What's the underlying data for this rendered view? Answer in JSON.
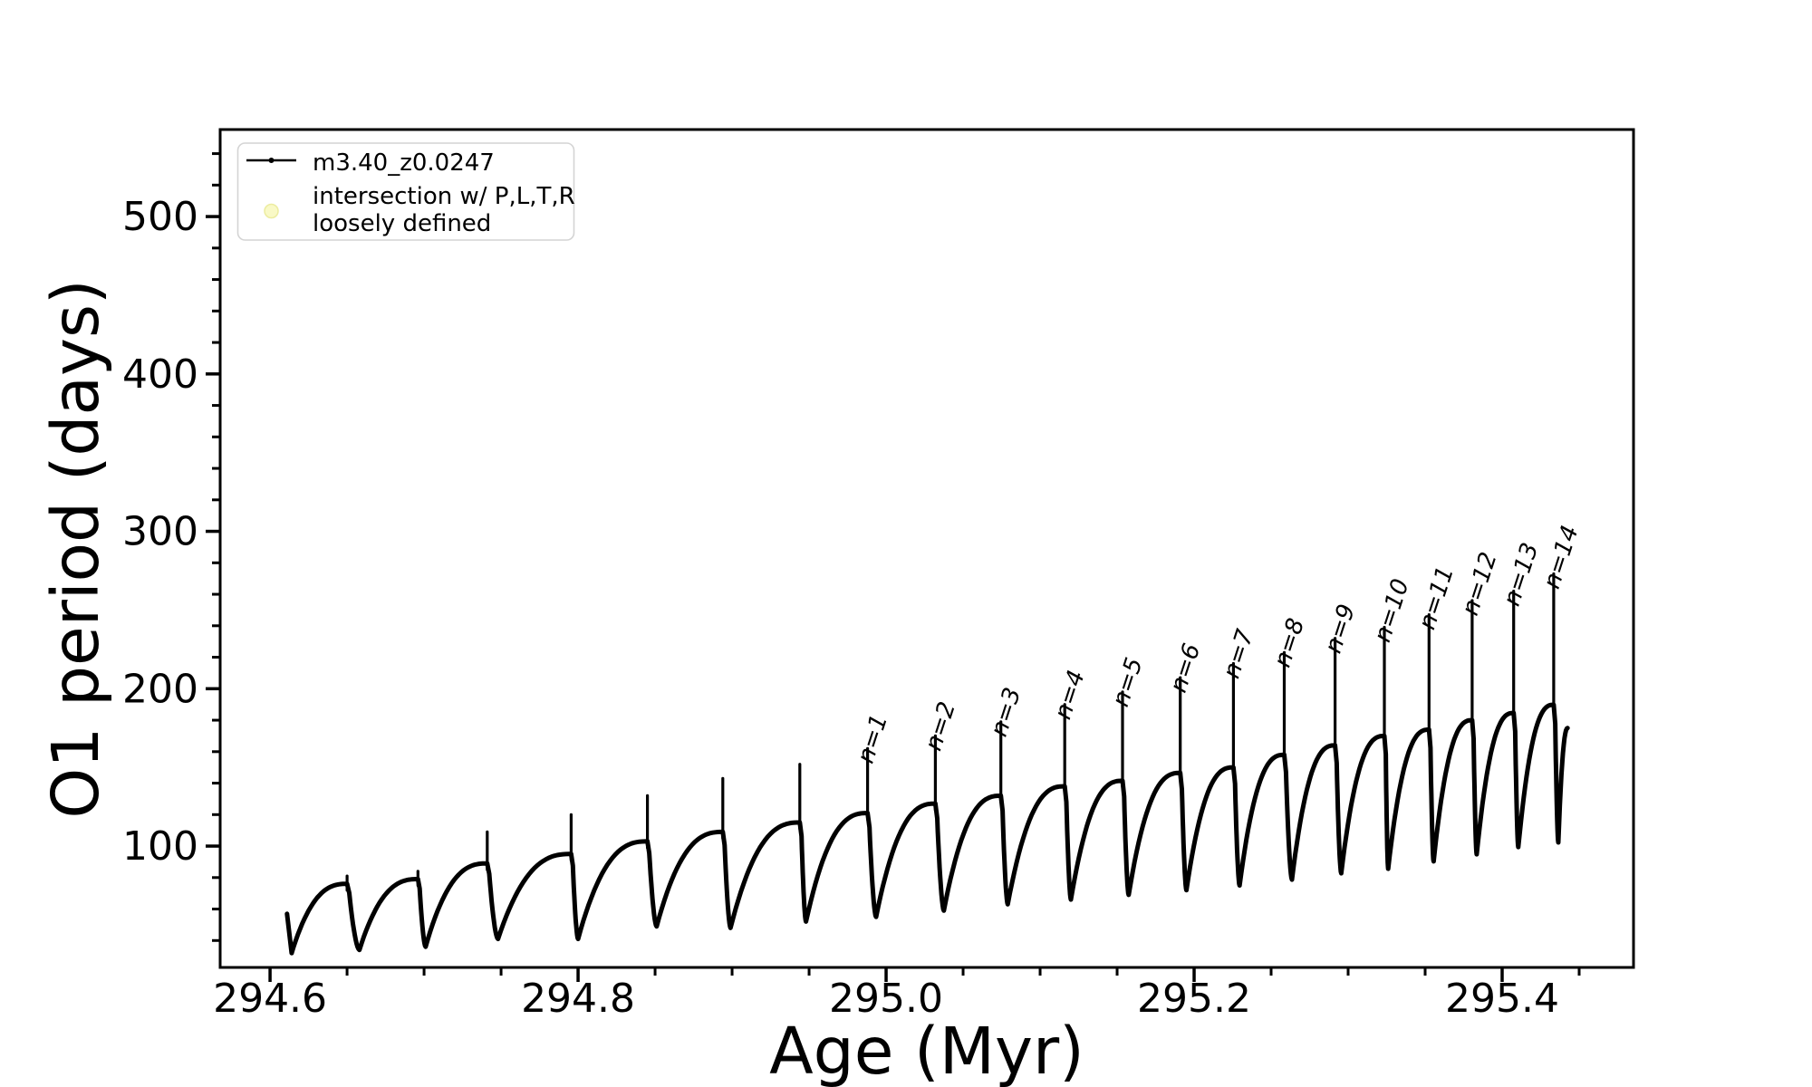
{
  "figure": {
    "background": "#ffffff",
    "frame_color": "#000000"
  },
  "chart_data": {
    "type": "line",
    "title": "",
    "xlabel": "Age (Myr)",
    "ylabel": "O1 period (days)",
    "xlim": [
      294.5676,
      295.4853
    ],
    "ylim": [
      22.9,
      555.3
    ],
    "x_major_ticks": [
      294.6,
      294.8,
      295.0,
      295.2,
      295.4
    ],
    "x_tick_labels": [
      "294.6",
      "294.8",
      "295.0",
      "295.2",
      "295.4"
    ],
    "x_minor_step": 0.05,
    "y_major_ticks": [
      100,
      200,
      300,
      400,
      500
    ],
    "y_tick_labels": [
      "100",
      "200",
      "300",
      "400",
      "500"
    ],
    "y_minor_step": 20,
    "grid": false,
    "legend_position": "upper-left",
    "series": {
      "name": "m3.40_z0.0247",
      "color": "#000000",
      "line_width": 5,
      "spike_width": 3.2
    },
    "start_point": {
      "t": 294.611,
      "v": 57
    },
    "cycles": [
      {
        "t_min": 294.614,
        "v_min": 32,
        "t_spike": 294.65,
        "v_plateau": 76,
        "v_spike": 81,
        "label": null
      },
      {
        "t_min": 294.658,
        "v_min": 34,
        "t_spike": 294.696,
        "v_plateau": 79,
        "v_spike": 84,
        "label": null
      },
      {
        "t_min": 294.701,
        "v_min": 36,
        "t_spike": 294.741,
        "v_plateau": 89,
        "v_spike": 109,
        "label": null
      },
      {
        "t_min": 294.748,
        "v_min": 41,
        "t_spike": 294.7955,
        "v_plateau": 95,
        "v_spike": 120,
        "label": null
      },
      {
        "t_min": 294.8,
        "v_min": 41,
        "t_spike": 294.845,
        "v_plateau": 103,
        "v_spike": 132,
        "label": null
      },
      {
        "t_min": 294.851,
        "v_min": 49,
        "t_spike": 294.894,
        "v_plateau": 109,
        "v_spike": 143,
        "label": null
      },
      {
        "t_min": 294.899,
        "v_min": 48,
        "t_spike": 294.944,
        "v_plateau": 115,
        "v_spike": 152,
        "label": null
      },
      {
        "t_min": 294.948,
        "v_min": 52,
        "t_spike": 294.988,
        "v_plateau": 121,
        "v_spike": 162,
        "label": "n=1"
      },
      {
        "t_min": 294.9935,
        "v_min": 55,
        "t_spike": 295.032,
        "v_plateau": 127,
        "v_spike": 170,
        "label": "n=2"
      },
      {
        "t_min": 295.0375,
        "v_min": 59,
        "t_spike": 295.0745,
        "v_plateau": 132,
        "v_spike": 179,
        "label": "n=3"
      },
      {
        "t_min": 295.079,
        "v_min": 63,
        "t_spike": 295.116,
        "v_plateau": 138,
        "v_spike": 190,
        "label": "n=4"
      },
      {
        "t_min": 295.12,
        "v_min": 66,
        "t_spike": 295.1535,
        "v_plateau": 141.5,
        "v_spike": 198,
        "label": "n=5"
      },
      {
        "t_min": 295.1575,
        "v_min": 69,
        "t_spike": 295.191,
        "v_plateau": 146.5,
        "v_spike": 207,
        "label": "n=6"
      },
      {
        "t_min": 295.195,
        "v_min": 72,
        "t_spike": 295.2255,
        "v_plateau": 150,
        "v_spike": 216,
        "label": "n=7"
      },
      {
        "t_min": 295.2295,
        "v_min": 75,
        "t_spike": 295.2585,
        "v_plateau": 158,
        "v_spike": 223,
        "label": "n=8"
      },
      {
        "t_min": 295.2635,
        "v_min": 78.7,
        "t_spike": 295.2915,
        "v_plateau": 164,
        "v_spike": 232,
        "label": "n=9"
      },
      {
        "t_min": 295.2955,
        "v_min": 82.7,
        "t_spike": 295.3235,
        "v_plateau": 170,
        "v_spike": 239,
        "label": "n=10"
      },
      {
        "t_min": 295.326,
        "v_min": 85.6,
        "t_spike": 295.3525,
        "v_plateau": 174,
        "v_spike": 247,
        "label": "n=11"
      },
      {
        "t_min": 295.3555,
        "v_min": 90.3,
        "t_spike": 295.3805,
        "v_plateau": 180,
        "v_spike": 256,
        "label": "n=12"
      },
      {
        "t_min": 295.3835,
        "v_min": 94.8,
        "t_spike": 295.4075,
        "v_plateau": 184.6,
        "v_spike": 262,
        "label": "n=13"
      },
      {
        "t_min": 295.4105,
        "v_min": 99.4,
        "t_spike": 295.4335,
        "v_plateau": 189.8,
        "v_spike": 273,
        "label": "n=14"
      }
    ],
    "final_segment": {
      "t_min": 295.4365,
      "v_min": 102.3,
      "t_end": 295.4425,
      "v_end": 175
    },
    "spike_labels": [
      "n=1",
      "n=2",
      "n=3",
      "n=4",
      "n=5",
      "n=6",
      "n=7",
      "n=8",
      "n=9",
      "n=10",
      "n=11",
      "n=12",
      "n=13",
      "n=14"
    ]
  },
  "legend": {
    "border_color": "#d4d4d4",
    "background": "#ffffff",
    "entries": [
      {
        "label": "m3.40_z0.0247",
        "marker": "line-with-dot",
        "color": "#000000"
      },
      {
        "line1": "intersection w/ P,L,T,R",
        "line2": "loosely defined",
        "marker": "circle",
        "fill": "#f9f9c6",
        "edge": "#ececa0"
      }
    ]
  }
}
